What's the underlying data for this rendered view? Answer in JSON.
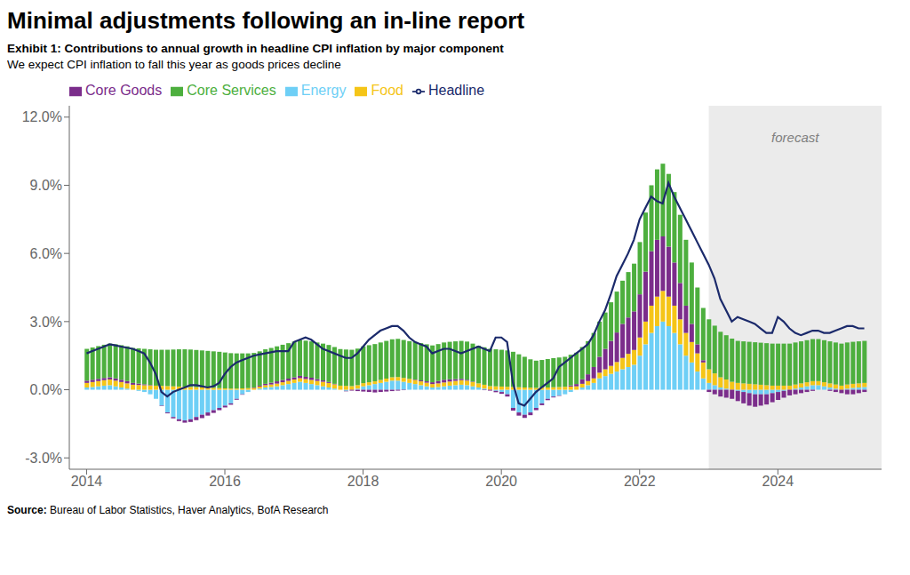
{
  "chart_data": {
    "type": "bar",
    "stacked": true,
    "grid": false,
    "legend": "upper left",
    "title": "Minimal adjustments following an in-line report",
    "subtitle": [
      "Exhibit 1: Contributions to annual growth in headline CPI inflation by major component",
      "We expect CPI inflation to fall this year as goods prices decline"
    ],
    "source": [
      "Source:",
      "Bureau of Labor Statistics, Haver Analytics, BofA Research"
    ],
    "annotations": [
      {
        "text": "forecast",
        "x": 2024.25,
        "y": 11.5,
        "region": [
          2023.0,
          2025.5
        ],
        "color": "#EBEBEB"
      }
    ],
    "xlim": [
      2013.75,
      2025.5
    ],
    "xticks": [
      2014,
      2016,
      2018,
      2020,
      2022,
      2024
    ],
    "ylim": [
      -3.5,
      12.5
    ],
    "yticks": [
      {
        "value": -3.0,
        "label": "-3.0%"
      },
      {
        "value": 0.0,
        "label": "0.0%"
      },
      {
        "value": 3.0,
        "label": "3.0%"
      },
      {
        "value": 6.0,
        "label": "6.0%"
      },
      {
        "value": 9.0,
        "label": "9.0%"
      },
      {
        "value": 12.0,
        "label": "12.0%"
      }
    ],
    "x": [
      2014.0,
      2014.083,
      2014.167,
      2014.25,
      2014.333,
      2014.417,
      2014.5,
      2014.583,
      2014.667,
      2014.75,
      2014.833,
      2014.917,
      2015.0,
      2015.083,
      2015.167,
      2015.25,
      2015.333,
      2015.417,
      2015.5,
      2015.583,
      2015.667,
      2015.75,
      2015.833,
      2015.917,
      2016.0,
      2016.083,
      2016.167,
      2016.25,
      2016.333,
      2016.417,
      2016.5,
      2016.583,
      2016.667,
      2016.75,
      2016.833,
      2016.917,
      2017.0,
      2017.083,
      2017.167,
      2017.25,
      2017.333,
      2017.417,
      2017.5,
      2017.583,
      2017.667,
      2017.75,
      2017.833,
      2017.917,
      2018.0,
      2018.083,
      2018.167,
      2018.25,
      2018.333,
      2018.417,
      2018.5,
      2018.583,
      2018.667,
      2018.75,
      2018.833,
      2018.917,
      2019.0,
      2019.083,
      2019.167,
      2019.25,
      2019.333,
      2019.417,
      2019.5,
      2019.583,
      2019.667,
      2019.75,
      2019.833,
      2019.917,
      2020.0,
      2020.083,
      2020.167,
      2020.25,
      2020.333,
      2020.417,
      2020.5,
      2020.583,
      2020.667,
      2020.75,
      2020.833,
      2020.917,
      2021.0,
      2021.083,
      2021.167,
      2021.25,
      2021.333,
      2021.417,
      2021.5,
      2021.583,
      2021.667,
      2021.75,
      2021.833,
      2021.917,
      2022.0,
      2022.083,
      2022.167,
      2022.25,
      2022.333,
      2022.417,
      2022.5,
      2022.583,
      2022.667,
      2022.75,
      2022.833,
      2022.917,
      2023.0,
      2023.083,
      2023.167,
      2023.25,
      2023.333,
      2023.417,
      2023.5,
      2023.583,
      2023.667,
      2023.75,
      2023.833,
      2023.917,
      2024.0,
      2024.083,
      2024.167,
      2024.25,
      2024.333,
      2024.417,
      2024.5,
      2024.583,
      2024.667,
      2024.75,
      2024.833,
      2024.917,
      2025.0,
      2025.083,
      2025.167,
      2025.25
    ],
    "series": [
      {
        "name": "Energy",
        "color": "#6ECFF6",
        "values": [
          0.1,
          0.12,
          0.15,
          0.18,
          0.2,
          0.15,
          0.1,
          0.05,
          0.0,
          -0.05,
          -0.1,
          -0.2,
          -0.4,
          -0.7,
          -1.0,
          -1.2,
          -1.3,
          -1.35,
          -1.3,
          -1.2,
          -1.1,
          -1.0,
          -0.9,
          -0.8,
          -0.7,
          -0.6,
          -0.4,
          -0.2,
          -0.1,
          0.0,
          0.05,
          0.1,
          0.12,
          0.15,
          0.2,
          0.25,
          0.3,
          0.35,
          0.3,
          0.25,
          0.2,
          0.15,
          0.1,
          0.05,
          0.0,
          -0.05,
          0.0,
          0.05,
          0.15,
          0.2,
          0.25,
          0.3,
          0.35,
          0.4,
          0.4,
          0.35,
          0.3,
          0.25,
          0.2,
          0.15,
          0.1,
          0.12,
          0.15,
          0.18,
          0.2,
          0.22,
          0.2,
          0.15,
          0.1,
          0.05,
          0.0,
          -0.05,
          -0.1,
          -0.2,
          -0.8,
          -1.0,
          -1.1,
          -1.0,
          -0.8,
          -0.6,
          -0.4,
          -0.3,
          -0.25,
          -0.2,
          -0.1,
          0.0,
          0.1,
          0.2,
          0.3,
          0.5,
          0.6,
          0.7,
          0.8,
          0.9,
          1.0,
          1.1,
          1.5,
          2.0,
          2.5,
          2.8,
          3.0,
          2.8,
          2.5,
          2.0,
          1.5,
          1.2,
          0.8,
          0.5,
          0.3,
          0.2,
          0.1,
          0.05,
          0.0,
          -0.05,
          -0.1,
          -0.15,
          -0.2,
          -0.2,
          -0.2,
          -0.15,
          -0.1,
          -0.05,
          0.0,
          0.05,
          0.1,
          0.15,
          0.2,
          0.2,
          0.15,
          0.1,
          0.05,
          0.0,
          0.05,
          0.08,
          0.1,
          0.12
        ]
      },
      {
        "name": "Food",
        "color": "#F5C518",
        "values": [
          0.2,
          0.22,
          0.23,
          0.24,
          0.25,
          0.25,
          0.24,
          0.23,
          0.22,
          0.21,
          0.2,
          0.19,
          0.18,
          0.17,
          0.16,
          0.15,
          0.14,
          0.13,
          0.12,
          0.11,
          0.1,
          0.09,
          0.08,
          0.07,
          0.06,
          0.05,
          0.05,
          0.06,
          0.07,
          0.08,
          0.09,
          0.1,
          0.11,
          0.12,
          0.13,
          0.14,
          0.15,
          0.16,
          0.17,
          0.18,
          0.19,
          0.2,
          0.2,
          0.19,
          0.18,
          0.17,
          0.16,
          0.15,
          0.14,
          0.13,
          0.12,
          0.13,
          0.14,
          0.15,
          0.16,
          0.17,
          0.18,
          0.18,
          0.17,
          0.16,
          0.15,
          0.16,
          0.17,
          0.18,
          0.19,
          0.2,
          0.2,
          0.19,
          0.18,
          0.17,
          0.16,
          0.15,
          0.14,
          0.13,
          0.12,
          0.11,
          0.1,
          0.09,
          0.08,
          0.09,
          0.1,
          0.11,
          0.12,
          0.13,
          0.14,
          0.15,
          0.16,
          0.18,
          0.2,
          0.25,
          0.3,
          0.35,
          0.42,
          0.5,
          0.58,
          0.65,
          0.8,
          1.0,
          1.2,
          1.3,
          1.35,
          1.3,
          1.2,
          1.1,
          1.0,
          0.9,
          0.8,
          0.7,
          0.6,
          0.52,
          0.45,
          0.4,
          0.35,
          0.3,
          0.28,
          0.26,
          0.24,
          0.22,
          0.2,
          0.18,
          0.18,
          0.18,
          0.18,
          0.18,
          0.18,
          0.18,
          0.18,
          0.18,
          0.18,
          0.18,
          0.18,
          0.18,
          0.18,
          0.18,
          0.18,
          0.18
        ]
      },
      {
        "name": "Core Goods",
        "color": "#7B2D8B",
        "values": [
          0.1,
          0.1,
          0.1,
          0.1,
          0.1,
          0.1,
          0.1,
          0.1,
          0.08,
          0.06,
          0.04,
          0.02,
          0.0,
          -0.02,
          -0.04,
          -0.06,
          -0.08,
          -0.1,
          -0.12,
          -0.14,
          -0.15,
          -0.14,
          -0.12,
          -0.1,
          -0.08,
          -0.06,
          -0.04,
          -0.02,
          0.0,
          0.02,
          0.04,
          0.06,
          0.08,
          0.1,
          0.1,
          0.1,
          0.1,
          0.1,
          0.1,
          0.1,
          0.08,
          0.06,
          0.04,
          0.02,
          0.0,
          -0.02,
          -0.04,
          -0.06,
          -0.08,
          -0.1,
          -0.12,
          -0.1,
          -0.08,
          -0.06,
          -0.04,
          -0.02,
          0.0,
          0.02,
          0.04,
          0.06,
          0.08,
          0.1,
          0.12,
          0.1,
          0.08,
          0.06,
          0.04,
          0.02,
          0.0,
          -0.02,
          -0.04,
          -0.06,
          -0.08,
          -0.1,
          -0.12,
          -0.14,
          -0.14,
          -0.12,
          -0.1,
          -0.08,
          -0.06,
          -0.04,
          -0.02,
          0.0,
          0.05,
          0.1,
          0.2,
          0.3,
          0.5,
          0.7,
          0.9,
          1.1,
          1.3,
          1.5,
          1.6,
          1.7,
          1.9,
          2.2,
          2.4,
          2.5,
          2.4,
          2.2,
          1.9,
          1.6,
          1.2,
          0.8,
          0.4,
          0.1,
          -0.1,
          -0.2,
          -0.3,
          -0.35,
          -0.4,
          -0.45,
          -0.5,
          -0.55,
          -0.55,
          -0.5,
          -0.45,
          -0.4,
          -0.35,
          -0.3,
          -0.25,
          -0.2,
          -0.15,
          -0.1,
          -0.05,
          0.0,
          0.0,
          -0.05,
          -0.1,
          -0.15,
          -0.2,
          -0.2,
          -0.15,
          -0.1
        ]
      },
      {
        "name": "Core Services",
        "color": "#4DAF3E",
        "values": [
          1.4,
          1.42,
          1.44,
          1.46,
          1.48,
          1.5,
          1.52,
          1.53,
          1.54,
          1.55,
          1.56,
          1.57,
          1.58,
          1.59,
          1.6,
          1.62,
          1.64,
          1.65,
          1.65,
          1.64,
          1.63,
          1.62,
          1.61,
          1.6,
          1.58,
          1.56,
          1.55,
          1.54,
          1.53,
          1.52,
          1.51,
          1.52,
          1.53,
          1.54,
          1.55,
          1.56,
          1.57,
          1.58,
          1.59,
          1.6,
          1.61,
          1.62,
          1.63,
          1.62,
          1.61,
          1.6,
          1.6,
          1.61,
          1.62,
          1.63,
          1.64,
          1.65,
          1.66,
          1.67,
          1.68,
          1.67,
          1.66,
          1.65,
          1.64,
          1.63,
          1.62,
          1.63,
          1.64,
          1.65,
          1.66,
          1.67,
          1.68,
          1.67,
          1.66,
          1.65,
          1.64,
          1.63,
          1.62,
          1.6,
          1.55,
          1.45,
          1.35,
          1.25,
          1.2,
          1.22,
          1.25,
          1.28,
          1.3,
          1.32,
          1.35,
          1.38,
          1.42,
          1.46,
          1.5,
          1.55,
          1.6,
          1.7,
          1.8,
          1.9,
          2.0,
          2.1,
          2.3,
          2.6,
          2.9,
          3.1,
          3.2,
          3.2,
          3.1,
          3.0,
          2.9,
          2.7,
          2.5,
          2.3,
          2.2,
          2.1,
          2.0,
          1.95,
          1.9,
          1.85,
          1.85,
          1.85,
          1.85,
          1.85,
          1.85,
          1.85,
          1.85,
          1.85,
          1.85,
          1.85,
          1.85,
          1.85,
          1.85,
          1.85,
          1.85,
          1.85,
          1.85,
          1.85,
          1.85,
          1.85,
          1.85,
          1.85
        ]
      },
      {
        "name": "Headline",
        "type": "line",
        "color": "#1B2A6B",
        "values": [
          1.6,
          1.7,
          1.8,
          1.9,
          2.0,
          1.95,
          1.9,
          1.85,
          1.8,
          1.7,
          1.6,
          1.2,
          0.7,
          -0.1,
          -0.3,
          -0.1,
          0.0,
          0.1,
          0.2,
          0.2,
          0.15,
          0.1,
          0.15,
          0.3,
          0.7,
          1.0,
          1.2,
          1.3,
          1.4,
          1.5,
          1.55,
          1.6,
          1.65,
          1.7,
          1.7,
          1.7,
          2.1,
          2.2,
          2.3,
          2.2,
          2.0,
          1.8,
          1.7,
          1.6,
          1.5,
          1.4,
          1.4,
          1.6,
          1.9,
          2.2,
          2.4,
          2.6,
          2.7,
          2.8,
          2.8,
          2.6,
          2.3,
          2.1,
          2.0,
          1.9,
          1.6,
          1.7,
          1.8,
          1.8,
          1.7,
          1.6,
          1.7,
          1.8,
          1.9,
          1.8,
          1.7,
          2.3,
          2.3,
          2.1,
          0.3,
          -0.6,
          -0.7,
          -0.4,
          -0.1,
          0.1,
          0.3,
          0.5,
          1.0,
          1.2,
          1.4,
          1.6,
          1.8,
          2.0,
          2.4,
          3.0,
          3.5,
          4.2,
          5.0,
          5.5,
          6.0,
          6.6,
          7.5,
          8.0,
          8.5,
          8.3,
          8.2,
          9.1,
          8.5,
          8.0,
          7.5,
          7.0,
          6.5,
          6.0,
          5.5,
          4.9,
          4.0,
          3.5,
          3.0,
          3.2,
          3.1,
          3.0,
          2.9,
          2.7,
          2.5,
          2.5,
          3.2,
          3.0,
          2.7,
          2.5,
          2.4,
          2.5,
          2.6,
          2.6,
          2.5,
          2.5,
          2.6,
          2.7,
          2.8,
          2.8,
          2.7,
          2.7
        ]
      }
    ]
  }
}
